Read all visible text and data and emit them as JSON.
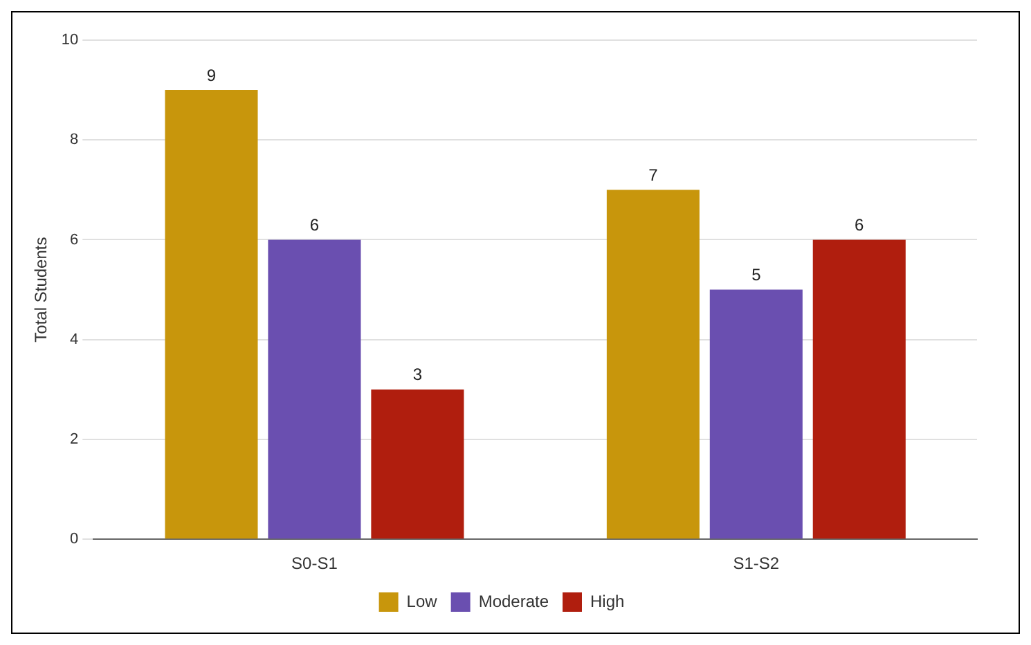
{
  "chart_data": {
    "type": "bar",
    "ylabel": "Total Students",
    "categories": [
      "S0-S1",
      "S1-S2"
    ],
    "series": [
      {
        "name": "Low",
        "color": "#c8960c",
        "values": [
          9,
          7
        ]
      },
      {
        "name": "Moderate",
        "color": "#6a4fb0",
        "values": [
          6,
          5
        ]
      },
      {
        "name": "High",
        "color": "#b01e0e",
        "values": [
          3,
          6
        ]
      }
    ],
    "ylim": [
      0,
      10
    ],
    "yticks": [
      0,
      2,
      4,
      6,
      8,
      10
    ],
    "grid": "y",
    "legend": "bottom",
    "data_labels": true
  }
}
